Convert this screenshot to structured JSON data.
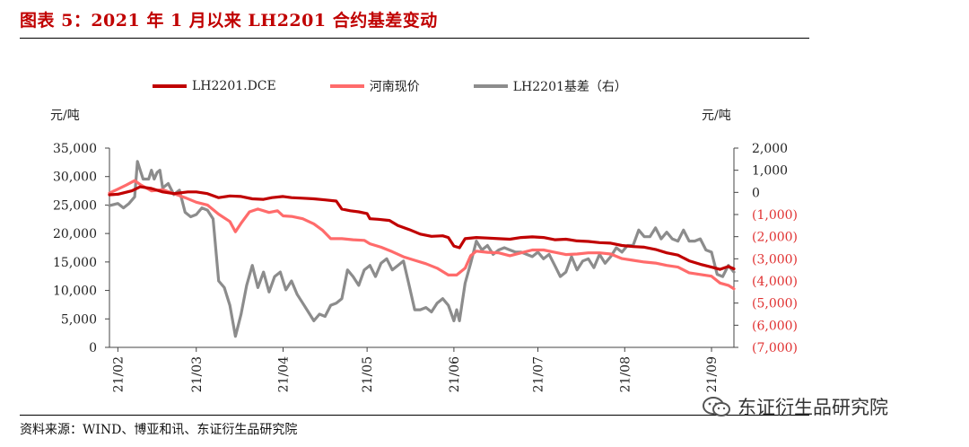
{
  "header": {
    "title": "图表 5：2021 年 1 月以来 LH2201 合约基差变动"
  },
  "footer": {
    "source": "资料来源：WIND、博亚和讯、东证衍生品研究院",
    "brand": "东证衍生品研究院"
  },
  "colors": {
    "futures": "#c00000",
    "spot": "#ff6b6b",
    "basis": "#8c8c8c",
    "right_axis_negative": "#e03030",
    "title": "#c00000"
  },
  "chart_data": {
    "type": "line",
    "title": "图表 5：2021 年 1 月以来 LH2201 合约基差变动",
    "left_unit": "元/吨",
    "right_unit": "元/吨",
    "x_tick_labels": [
      "21/02",
      "21/03",
      "21/04",
      "21/05",
      "21/06",
      "21/07",
      "21/08",
      "21/09"
    ],
    "x_tick_positions": [
      0,
      28,
      59,
      89,
      120,
      150,
      181,
      212
    ],
    "y_left": {
      "min": 0,
      "max": 35000,
      "step": 5000,
      "tick_labels": [
        "0",
        "5,000",
        "10,000",
        "15,000",
        "20,000",
        "25,000",
        "30,000",
        "35,000"
      ]
    },
    "y_right": {
      "min": -7000,
      "max": 2000,
      "step": 1000,
      "tick_labels": [
        "(7,000)",
        "(6,000)",
        "(5,000)",
        "(4,000)",
        "(3,000)",
        "(2,000)",
        "(1,000)",
        "0",
        "1,000",
        "2,000"
      ]
    },
    "legend": [
      "LH2201.DCE",
      "河南现价",
      "LH2201基差（右）"
    ],
    "series": [
      {
        "name": "LH2201.DCE",
        "axis": "left",
        "points": [
          [
            -3,
            26800
          ],
          [
            0,
            26900
          ],
          [
            5,
            27500
          ],
          [
            8,
            28200
          ],
          [
            12,
            27900
          ],
          [
            16,
            27300
          ],
          [
            20,
            27000
          ],
          [
            25,
            27300
          ],
          [
            28,
            27300
          ],
          [
            32,
            27000
          ],
          [
            36,
            26300
          ],
          [
            40,
            26600
          ],
          [
            44,
            26500
          ],
          [
            48,
            26100
          ],
          [
            52,
            26000
          ],
          [
            55,
            26300
          ],
          [
            59,
            26500
          ],
          [
            62,
            26300
          ],
          [
            66,
            26200
          ],
          [
            70,
            26100
          ],
          [
            74,
            25900
          ],
          [
            78,
            25700
          ],
          [
            80,
            24300
          ],
          [
            83,
            24000
          ],
          [
            86,
            23800
          ],
          [
            89,
            23500
          ],
          [
            90,
            22600
          ],
          [
            93,
            22500
          ],
          [
            97,
            22300
          ],
          [
            100,
            21400
          ],
          [
            104,
            20700
          ],
          [
            108,
            19900
          ],
          [
            112,
            19500
          ],
          [
            116,
            19600
          ],
          [
            118,
            19300
          ],
          [
            120,
            17800
          ],
          [
            122,
            17500
          ],
          [
            124,
            19100
          ],
          [
            128,
            19300
          ],
          [
            132,
            19200
          ],
          [
            136,
            19100
          ],
          [
            140,
            19000
          ],
          [
            144,
            19300
          ],
          [
            148,
            19400
          ],
          [
            152,
            19300
          ],
          [
            156,
            18900
          ],
          [
            160,
            19000
          ],
          [
            164,
            18700
          ],
          [
            168,
            18600
          ],
          [
            172,
            18400
          ],
          [
            176,
            18300
          ],
          [
            180,
            17900
          ],
          [
            184,
            17700
          ],
          [
            188,
            17600
          ],
          [
            192,
            17200
          ],
          [
            196,
            16600
          ],
          [
            200,
            16200
          ],
          [
            204,
            15200
          ],
          [
            208,
            14600
          ],
          [
            212,
            14100
          ],
          [
            215,
            13700
          ],
          [
            218,
            14200
          ],
          [
            220,
            13800
          ]
        ]
      },
      {
        "name": "河南现价",
        "axis": "left",
        "points": [
          [
            -3,
            27100
          ],
          [
            0,
            27800
          ],
          [
            3,
            28500
          ],
          [
            6,
            29300
          ],
          [
            8,
            28600
          ],
          [
            12,
            27500
          ],
          [
            16,
            27700
          ],
          [
            20,
            27000
          ],
          [
            24,
            26300
          ],
          [
            28,
            25500
          ],
          [
            32,
            25000
          ],
          [
            36,
            23400
          ],
          [
            40,
            22100
          ],
          [
            42,
            20300
          ],
          [
            44,
            21800
          ],
          [
            47,
            23800
          ],
          [
            50,
            24300
          ],
          [
            54,
            23700
          ],
          [
            57,
            24000
          ],
          [
            59,
            23100
          ],
          [
            62,
            23000
          ],
          [
            66,
            22600
          ],
          [
            70,
            21700
          ],
          [
            73,
            20600
          ],
          [
            76,
            19100
          ],
          [
            80,
            19100
          ],
          [
            84,
            18900
          ],
          [
            88,
            18800
          ],
          [
            90,
            18200
          ],
          [
            94,
            17600
          ],
          [
            98,
            16800
          ],
          [
            102,
            15900
          ],
          [
            106,
            15300
          ],
          [
            110,
            14700
          ],
          [
            114,
            13900
          ],
          [
            118,
            12700
          ],
          [
            121,
            12700
          ],
          [
            124,
            13900
          ],
          [
            126,
            16100
          ],
          [
            128,
            16900
          ],
          [
            132,
            16700
          ],
          [
            136,
            16600
          ],
          [
            140,
            16100
          ],
          [
            144,
            16600
          ],
          [
            148,
            17100
          ],
          [
            152,
            17100
          ],
          [
            156,
            16700
          ],
          [
            160,
            16300
          ],
          [
            164,
            16400
          ],
          [
            168,
            16600
          ],
          [
            172,
            16600
          ],
          [
            176,
            16400
          ],
          [
            180,
            15600
          ],
          [
            184,
            15300
          ],
          [
            188,
            15000
          ],
          [
            192,
            14800
          ],
          [
            196,
            14400
          ],
          [
            200,
            14100
          ],
          [
            204,
            13100
          ],
          [
            208,
            12800
          ],
          [
            212,
            12500
          ],
          [
            215,
            11300
          ],
          [
            218,
            10900
          ],
          [
            220,
            10300
          ]
        ]
      },
      {
        "name": "LH2201基差（右）",
        "axis": "right",
        "points": [
          [
            -3,
            -600
          ],
          [
            0,
            -500
          ],
          [
            2,
            -700
          ],
          [
            4,
            -500
          ],
          [
            6,
            -200
          ],
          [
            7,
            1400
          ],
          [
            8,
            1000
          ],
          [
            9,
            600
          ],
          [
            11,
            600
          ],
          [
            12,
            1000
          ],
          [
            13,
            600
          ],
          [
            14,
            900
          ],
          [
            15,
            1000
          ],
          [
            16,
            200
          ],
          [
            18,
            400
          ],
          [
            20,
            -100
          ],
          [
            22,
            100
          ],
          [
            24,
            -900
          ],
          [
            26,
            -1100
          ],
          [
            28,
            -1000
          ],
          [
            30,
            -700
          ],
          [
            32,
            -800
          ],
          [
            34,
            -1200
          ],
          [
            36,
            -4000
          ],
          [
            38,
            -4300
          ],
          [
            40,
            -5100
          ],
          [
            42,
            -6500
          ],
          [
            44,
            -5500
          ],
          [
            46,
            -4200
          ],
          [
            48,
            -3300
          ],
          [
            50,
            -4300
          ],
          [
            52,
            -3600
          ],
          [
            54,
            -4500
          ],
          [
            56,
            -3800
          ],
          [
            58,
            -3600
          ],
          [
            60,
            -4400
          ],
          [
            62,
            -4000
          ],
          [
            64,
            -4600
          ],
          [
            66,
            -5000
          ],
          [
            68,
            -5400
          ],
          [
            70,
            -5800
          ],
          [
            72,
            -5500
          ],
          [
            74,
            -5600
          ],
          [
            76,
            -5100
          ],
          [
            78,
            -5000
          ],
          [
            80,
            -4800
          ],
          [
            82,
            -3500
          ],
          [
            84,
            -3800
          ],
          [
            86,
            -4200
          ],
          [
            88,
            -3500
          ],
          [
            90,
            -3300
          ],
          [
            92,
            -3800
          ],
          [
            94,
            -3200
          ],
          [
            96,
            -3000
          ],
          [
            98,
            -3500
          ],
          [
            100,
            -3300
          ],
          [
            102,
            -3100
          ],
          [
            104,
            -4200
          ],
          [
            106,
            -5300
          ],
          [
            108,
            -5300
          ],
          [
            110,
            -5200
          ],
          [
            112,
            -5400
          ],
          [
            114,
            -5000
          ],
          [
            116,
            -4800
          ],
          [
            118,
            -5100
          ],
          [
            120,
            -5800
          ],
          [
            121,
            -5300
          ],
          [
            122,
            -5800
          ],
          [
            124,
            -4100
          ],
          [
            126,
            -3200
          ],
          [
            128,
            -2200
          ],
          [
            130,
            -2600
          ],
          [
            132,
            -2400
          ],
          [
            134,
            -2800
          ],
          [
            136,
            -2600
          ],
          [
            138,
            -2500
          ],
          [
            140,
            -2600
          ],
          [
            142,
            -2700
          ],
          [
            144,
            -2700
          ],
          [
            146,
            -2800
          ],
          [
            148,
            -2900
          ],
          [
            150,
            -2700
          ],
          [
            152,
            -3000
          ],
          [
            154,
            -2800
          ],
          [
            156,
            -3300
          ],
          [
            158,
            -3800
          ],
          [
            160,
            -3600
          ],
          [
            162,
            -2900
          ],
          [
            164,
            -3500
          ],
          [
            166,
            -3100
          ],
          [
            168,
            -3000
          ],
          [
            170,
            -3400
          ],
          [
            172,
            -2800
          ],
          [
            174,
            -3200
          ],
          [
            176,
            -2900
          ],
          [
            178,
            -2500
          ],
          [
            180,
            -2700
          ],
          [
            182,
            -2400
          ],
          [
            184,
            -2400
          ],
          [
            186,
            -1700
          ],
          [
            188,
            -2000
          ],
          [
            190,
            -2000
          ],
          [
            192,
            -1600
          ],
          [
            194,
            -2100
          ],
          [
            196,
            -1800
          ],
          [
            198,
            -2100
          ],
          [
            200,
            -2200
          ],
          [
            202,
            -1700
          ],
          [
            204,
            -2200
          ],
          [
            206,
            -2200
          ],
          [
            208,
            -2100
          ],
          [
            210,
            -2600
          ],
          [
            212,
            -2700
          ],
          [
            214,
            -3700
          ],
          [
            216,
            -3800
          ],
          [
            218,
            -3300
          ],
          [
            220,
            -3600
          ]
        ]
      }
    ]
  }
}
